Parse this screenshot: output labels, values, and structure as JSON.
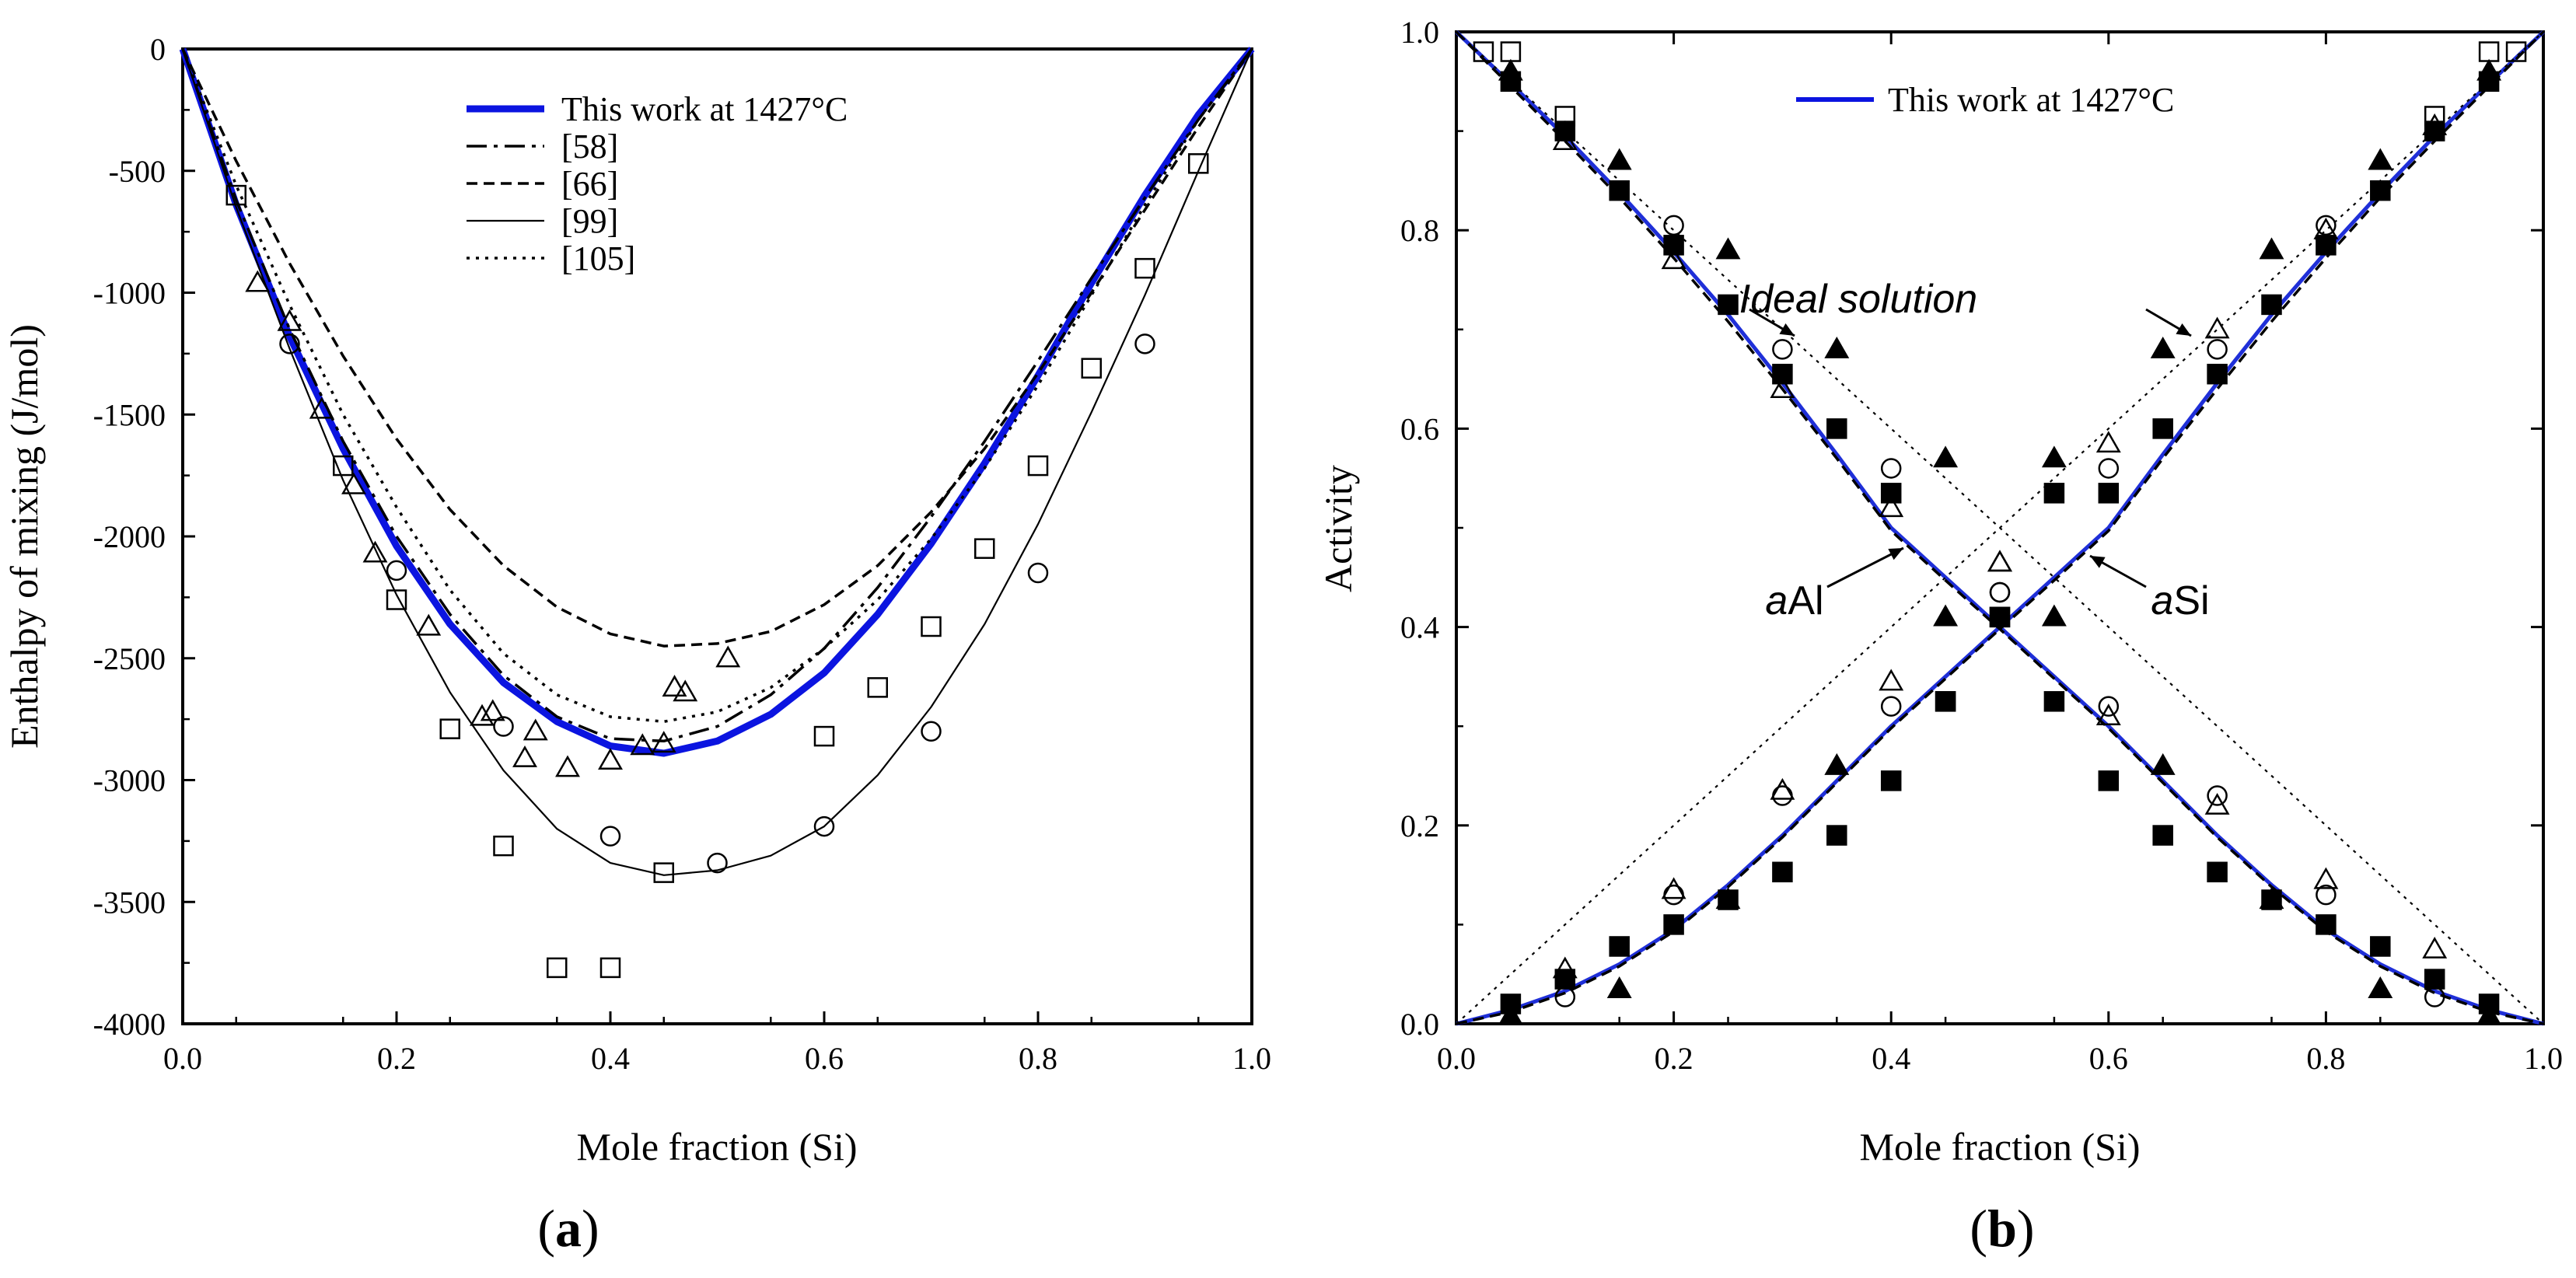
{
  "chart_data": [
    {
      "type": "line",
      "panel_label": "a",
      "xlabel": "Mole fraction (Si)",
      "ylabel": "Enthalpy of mixing (J/mol)",
      "xlim": [
        0,
        1
      ],
      "ylim": [
        -4000,
        0
      ],
      "x_ticks": [
        "0.0",
        "0.2",
        "0.4",
        "0.6",
        "0.8",
        "1.0"
      ],
      "y_ticks": [
        "0",
        "-500",
        "-1000",
        "-1500",
        "-2000",
        "-2500",
        "-3000",
        "-3500",
        "-4000"
      ],
      "legend": [
        "This work at 1427°C",
        "[58]",
        "[66]",
        "[99]",
        "[105]"
      ],
      "series": [
        {
          "name": "This work at 1427°C",
          "style": "blue-thick",
          "x": [
            0,
            0.05,
            0.1,
            0.15,
            0.2,
            0.25,
            0.3,
            0.35,
            0.4,
            0.45,
            0.5,
            0.55,
            0.6,
            0.65,
            0.7,
            0.75,
            0.8,
            0.85,
            0.9,
            0.95,
            1.0
          ],
          "y": [
            0,
            -640,
            -1180,
            -1640,
            -2040,
            -2360,
            -2600,
            -2760,
            -2860,
            -2890,
            -2840,
            -2730,
            -2560,
            -2320,
            -2030,
            -1700,
            -1340,
            -960,
            -600,
            -270,
            0
          ]
        },
        {
          "name": "[58]",
          "style": "dashdot",
          "x": [
            0,
            0.05,
            0.1,
            0.15,
            0.2,
            0.25,
            0.3,
            0.35,
            0.4,
            0.45,
            0.5,
            0.55,
            0.6,
            0.65,
            0.7,
            0.75,
            0.8,
            0.85,
            0.9,
            0.95,
            1.0
          ],
          "y": [
            0,
            -620,
            -1150,
            -1610,
            -2000,
            -2320,
            -2570,
            -2740,
            -2830,
            -2840,
            -2780,
            -2650,
            -2460,
            -2210,
            -1920,
            -1610,
            -1280,
            -940,
            -610,
            -290,
            0
          ]
        },
        {
          "name": "[66]",
          "style": "dashed",
          "x": [
            0,
            0.05,
            0.1,
            0.15,
            0.2,
            0.25,
            0.3,
            0.35,
            0.4,
            0.45,
            0.5,
            0.55,
            0.6,
            0.65,
            0.7,
            0.75,
            0.8,
            0.85,
            0.9,
            0.95,
            1.0
          ],
          "y": [
            0,
            -460,
            -880,
            -1260,
            -1600,
            -1890,
            -2120,
            -2290,
            -2400,
            -2450,
            -2440,
            -2390,
            -2280,
            -2120,
            -1900,
            -1640,
            -1330,
            -1000,
            -660,
            -320,
            0
          ]
        },
        {
          "name": "[99]",
          "style": "solid-thin",
          "x": [
            0,
            0.05,
            0.1,
            0.15,
            0.2,
            0.25,
            0.3,
            0.35,
            0.4,
            0.45,
            0.5,
            0.55,
            0.6,
            0.65,
            0.7,
            0.75,
            0.8,
            0.85,
            0.9,
            0.95,
            1.0
          ],
          "y": [
            0,
            -650,
            -1230,
            -1770,
            -2240,
            -2640,
            -2960,
            -3200,
            -3340,
            -3390,
            -3370,
            -3310,
            -3190,
            -2980,
            -2700,
            -2360,
            -1950,
            -1490,
            -1010,
            -500,
            0
          ]
        },
        {
          "name": "[105]",
          "style": "dotted",
          "x": [
            0,
            0.05,
            0.1,
            0.15,
            0.2,
            0.25,
            0.3,
            0.35,
            0.4,
            0.45,
            0.5,
            0.55,
            0.6,
            0.65,
            0.7,
            0.75,
            0.8,
            0.85,
            0.9,
            0.95,
            1.0
          ],
          "y": [
            0,
            -560,
            -1050,
            -1500,
            -1880,
            -2220,
            -2480,
            -2650,
            -2740,
            -2760,
            -2720,
            -2620,
            -2460,
            -2260,
            -2010,
            -1720,
            -1380,
            -1010,
            -640,
            -290,
            0
          ]
        }
      ],
      "points": [
        {
          "marker": "square",
          "x": [
            0.05,
            0.15,
            0.2,
            0.25,
            0.3,
            0.35,
            0.4,
            0.45,
            0.6,
            0.65,
            0.7,
            0.75,
            0.8,
            0.85,
            0.9,
            0.95
          ],
          "y": [
            -600,
            -1710,
            -2260,
            -2790,
            -3270,
            -3770,
            -3770,
            -3380,
            -2820,
            -2620,
            -2370,
            -2050,
            -1710,
            -1310,
            -900,
            -470
          ]
        },
        {
          "marker": "circle",
          "x": [
            0.1,
            0.2,
            0.3,
            0.4,
            0.5,
            0.6,
            0.7,
            0.8,
            0.9
          ],
          "y": [
            -1210,
            -2140,
            -2780,
            -3230,
            -3340,
            -3190,
            -2800,
            -2150,
            -1210
          ]
        },
        {
          "marker": "triangle",
          "x": [
            0.07,
            0.1,
            0.13,
            0.16,
            0.18,
            0.23,
            0.28,
            0.29,
            0.32,
            0.33,
            0.36,
            0.4,
            0.43,
            0.45,
            0.46,
            0.47,
            0.51
          ],
          "y": [
            -960,
            -1120,
            -1480,
            -1790,
            -2070,
            -2370,
            -2740,
            -2720,
            -2910,
            -2800,
            -2950,
            -2920,
            -2860,
            -2850,
            -2620,
            -2640,
            -2500
          ]
        }
      ]
    },
    {
      "type": "line",
      "panel_label": "b",
      "xlabel": "Mole fraction (Si)",
      "ylabel": "Activity",
      "xlim": [
        0,
        1
      ],
      "ylim": [
        0,
        1
      ],
      "x_ticks": [
        "0.0",
        "0.2",
        "0.4",
        "0.6",
        "0.8",
        "1.0"
      ],
      "y_ticks": [
        "0.0",
        "0.2",
        "0.4",
        "0.6",
        "0.8",
        "1.0"
      ],
      "legend": [
        "This work at 1427°C"
      ],
      "annotations": [
        "Ideal solution",
        "aAl",
        "aSi"
      ],
      "series": [
        {
          "name": "This work at 1427°C (aAl)",
          "style": "blue",
          "x": [
            0,
            0.05,
            0.1,
            0.15,
            0.2,
            0.25,
            0.3,
            0.35,
            0.4,
            0.45,
            0.5,
            0.55,
            0.6,
            0.65,
            0.7,
            0.75,
            0.8,
            0.85,
            0.9,
            0.95,
            1.0
          ],
          "y": [
            1.0,
            0.948,
            0.895,
            0.838,
            0.778,
            0.715,
            0.646,
            0.574,
            0.5,
            0.45,
            0.4,
            0.35,
            0.3,
            0.245,
            0.19,
            0.14,
            0.095,
            0.06,
            0.033,
            0.014,
            0
          ]
        },
        {
          "name": "This work at 1427°C (aSi)",
          "style": "blue",
          "x": [
            0,
            0.05,
            0.1,
            0.15,
            0.2,
            0.25,
            0.3,
            0.35,
            0.4,
            0.45,
            0.5,
            0.55,
            0.6,
            0.65,
            0.7,
            0.75,
            0.8,
            0.85,
            0.9,
            0.95,
            1.0
          ],
          "y": [
            0,
            0.014,
            0.033,
            0.06,
            0.095,
            0.14,
            0.19,
            0.245,
            0.3,
            0.35,
            0.4,
            0.45,
            0.5,
            0.574,
            0.646,
            0.715,
            0.778,
            0.838,
            0.895,
            0.948,
            1.0
          ]
        },
        {
          "name": "dashed (aAl)",
          "style": "dashed",
          "x": [
            0,
            0.05,
            0.1,
            0.15,
            0.2,
            0.25,
            0.3,
            0.35,
            0.4,
            0.45,
            0.5,
            0.55,
            0.6,
            0.65,
            0.7,
            0.75,
            0.8,
            0.85,
            0.9,
            0.95,
            1.0
          ],
          "y": [
            1.0,
            0.945,
            0.89,
            0.833,
            0.772,
            0.708,
            0.64,
            0.57,
            0.497,
            0.447,
            0.398,
            0.348,
            0.298,
            0.243,
            0.188,
            0.138,
            0.093,
            0.058,
            0.031,
            0.012,
            0
          ]
        },
        {
          "name": "dashed (aSi)",
          "style": "dashed",
          "x": [
            0,
            0.05,
            0.1,
            0.15,
            0.2,
            0.25,
            0.3,
            0.35,
            0.4,
            0.45,
            0.5,
            0.55,
            0.6,
            0.65,
            0.7,
            0.75,
            0.8,
            0.85,
            0.9,
            0.95,
            1.0
          ],
          "y": [
            0,
            0.012,
            0.031,
            0.058,
            0.093,
            0.138,
            0.188,
            0.243,
            0.298,
            0.348,
            0.398,
            0.447,
            0.497,
            0.57,
            0.64,
            0.708,
            0.772,
            0.833,
            0.89,
            0.945,
            1.0
          ]
        },
        {
          "name": "Ideal solution (aAl)",
          "style": "dotted-thin",
          "x": [
            0,
            1
          ],
          "y": [
            1,
            0
          ]
        },
        {
          "name": "Ideal solution (aSi)",
          "style": "dotted-thin",
          "x": [
            0,
            1
          ],
          "y": [
            0,
            1
          ]
        }
      ],
      "points": [
        {
          "marker": "square-open",
          "x": [
            0.025,
            0.05,
            0.1,
            0.5,
            0.9,
            0.95,
            0.975
          ],
          "y": [
            0.98,
            0.98,
            0.915,
            0.41,
            0.915,
            0.98,
            0.98
          ]
        },
        {
          "marker": "circle-open",
          "x": [
            0.1,
            0.2,
            0.3,
            0.4,
            0.5,
            0.6,
            0.7,
            0.8,
            0.9,
            0.1,
            0.2,
            0.3,
            0.4,
            0.5,
            0.6,
            0.7,
            0.8,
            0.9
          ],
          "y": [
            0.9,
            0.805,
            0.68,
            0.56,
            0.435,
            0.32,
            0.23,
            0.13,
            0.027,
            0.027,
            0.13,
            0.23,
            0.32,
            0.435,
            0.56,
            0.68,
            0.805,
            0.9
          ]
        },
        {
          "marker": "triangle-open",
          "x": [
            0.1,
            0.2,
            0.3,
            0.4,
            0.5,
            0.6,
            0.7,
            0.8,
            0.9,
            0.1,
            0.2,
            0.3,
            0.4,
            0.5,
            0.6,
            0.7,
            0.8,
            0.9
          ],
          "y": [
            0.89,
            0.77,
            0.64,
            0.52,
            0.465,
            0.31,
            0.22,
            0.145,
            0.075,
            0.055,
            0.135,
            0.235,
            0.345,
            0.465,
            0.585,
            0.7,
            0.8,
            0.905
          ]
        },
        {
          "marker": "square-filled",
          "x": [
            0.05,
            0.1,
            0.15,
            0.2,
            0.25,
            0.3,
            0.35,
            0.4,
            0.45,
            0.5,
            0.55,
            0.6,
            0.65,
            0.7,
            0.75,
            0.8,
            0.85,
            0.9,
            0.95,
            0.05,
            0.1,
            0.15,
            0.2,
            0.25,
            0.3,
            0.35,
            0.4,
            0.45,
            0.55,
            0.6,
            0.65,
            0.7,
            0.75,
            0.8,
            0.85,
            0.9,
            0.95
          ],
          "y": [
            0.95,
            0.9,
            0.84,
            0.785,
            0.725,
            0.655,
            0.6,
            0.535,
            0.325,
            0.41,
            0.325,
            0.245,
            0.19,
            0.153,
            0.125,
            0.1,
            0.078,
            0.045,
            0.02,
            0.02,
            0.045,
            0.078,
            0.1,
            0.125,
            0.153,
            0.19,
            0.245,
            0.325,
            0.535,
            0.535,
            0.6,
            0.655,
            0.725,
            0.785,
            0.84,
            0.9,
            0.95
          ]
        },
        {
          "marker": "triangle-filled",
          "x": [
            0.05,
            0.15,
            0.25,
            0.35,
            0.45,
            0.55,
            0.65,
            0.75,
            0.85,
            0.95,
            0.05,
            0.15,
            0.25,
            0.35,
            0.45,
            0.55,
            0.65,
            0.75,
            0.85,
            0.95
          ],
          "y": [
            0.96,
            0.87,
            0.78,
            0.68,
            0.57,
            0.41,
            0.26,
            0.125,
            0.035,
            0.008,
            0.008,
            0.035,
            0.125,
            0.26,
            0.41,
            0.57,
            0.68,
            0.78,
            0.87,
            0.96
          ]
        }
      ]
    }
  ]
}
